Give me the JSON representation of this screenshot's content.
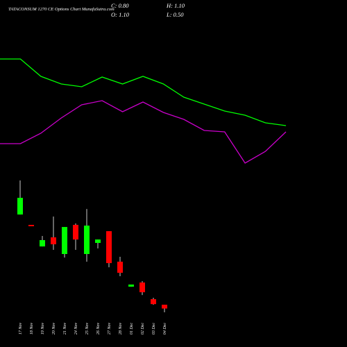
{
  "chart_data": [
    {
      "type": "candlestick",
      "title": "TATACONSUM 1270 CE Options Chart MunafaSutra.com",
      "ohlc_labels": [
        "C: 0.80",
        "H: 1.10",
        "O: 1.10",
        "L: 0.50"
      ],
      "categories": [
        "17 Nov",
        "18 Nov",
        "19 Nov",
        "20 Nov",
        "21 Nov",
        "24 Nov",
        "25 Nov",
        "26 Nov",
        "27 Nov",
        "28 Nov",
        "01 Dec",
        "02 Dec",
        "03 Dec",
        "04 Dec"
      ],
      "open": [
        8.25,
        7.43,
        5.72,
        6.44,
        5.12,
        7.43,
        5.12,
        6.0,
        6.93,
        4.51,
        2.53,
        2.86,
        1.54,
        1.1
      ],
      "high": [
        10.95,
        7.43,
        6.55,
        8.09,
        7.26,
        7.54,
        8.69,
        6.27,
        6.93,
        4.9,
        2.7,
        2.97,
        1.65,
        1.1
      ],
      "low": [
        8.25,
        7.32,
        5.72,
        5.45,
        4.84,
        5.45,
        4.51,
        5.56,
        4.07,
        3.36,
        2.53,
        1.87,
        1.1,
        0.5
      ],
      "close": [
        9.57,
        7.32,
        6.22,
        5.89,
        7.26,
        6.27,
        7.37,
        6.27,
        4.4,
        3.63,
        2.7,
        2.09,
        1.15,
        0.8
      ],
      "up_color": "#00ff00",
      "down_color": "#ff0000"
    },
    {
      "type": "line",
      "series": [
        {
          "color": "#00ff00",
          "values": [
            215,
            215,
            190,
            179,
            175,
            189,
            179,
            190,
            179,
            160,
            150,
            140,
            134,
            123,
            119
          ]
        },
        {
          "color": "#cc00cc",
          "values": [
            93,
            93,
            108,
            130,
            149,
            155,
            139,
            153,
            138,
            128,
            112,
            110,
            65,
            82,
            110
          ]
        }
      ]
    }
  ]
}
